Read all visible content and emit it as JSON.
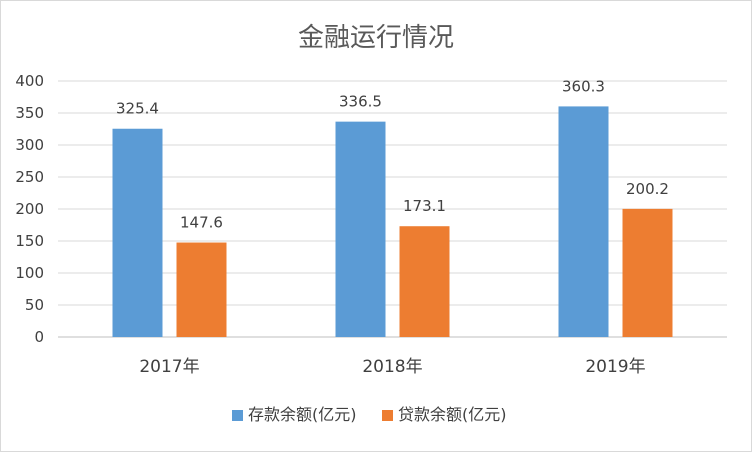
{
  "chart_data": {
    "type": "bar",
    "title": "金融运行情况",
    "categories": [
      "2017年",
      "2018年",
      "2019年"
    ],
    "series": [
      {
        "name": "存款余额(亿元)",
        "values": [
          325.4,
          336.5,
          360.3
        ],
        "color": "#5b9bd5"
      },
      {
        "name": "贷款余额(亿元)",
        "values": [
          147.6,
          173.1,
          200.2
        ],
        "color": "#ed7d31"
      }
    ],
    "yticks": [
      "0",
      "50",
      "100",
      "150",
      "200",
      "250",
      "300",
      "350",
      "400"
    ],
    "ylim": [
      0,
      400
    ],
    "grid": true,
    "legend_position": "bottom",
    "colors": {
      "gridline": "#d9d9d9",
      "axis": "#bfbfbf"
    }
  }
}
